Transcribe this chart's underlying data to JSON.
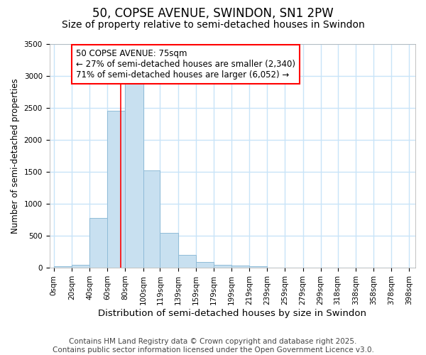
{
  "title": "50, COPSE AVENUE, SWINDON, SN1 2PW",
  "subtitle": "Size of property relative to semi-detached houses in Swindon",
  "xlabel": "Distribution of semi-detached houses by size in Swindon",
  "ylabel": "Number of semi-detached properties",
  "property_size": 75,
  "bar_left_edges": [
    0,
    20,
    40,
    60,
    80,
    100,
    119,
    139,
    159,
    179,
    199,
    219,
    239,
    259,
    279,
    299,
    318,
    338,
    358,
    378
  ],
  "bar_heights": [
    20,
    50,
    780,
    2450,
    2880,
    1520,
    540,
    200,
    90,
    50,
    30,
    20,
    5,
    3,
    3,
    2,
    2,
    1,
    1,
    1
  ],
  "bar_widths": [
    20,
    20,
    20,
    20,
    20,
    19,
    20,
    20,
    20,
    20,
    20,
    20,
    20,
    20,
    20,
    19,
    20,
    20,
    20,
    20
  ],
  "tick_labels": [
    "0sqm",
    "20sqm",
    "40sqm",
    "60sqm",
    "80sqm",
    "100sqm",
    "119sqm",
    "139sqm",
    "159sqm",
    "179sqm",
    "199sqm",
    "219sqm",
    "239sqm",
    "259sqm",
    "279sqm",
    "299sqm",
    "318sqm",
    "338sqm",
    "358sqm",
    "378sqm",
    "398sqm"
  ],
  "tick_positions": [
    0,
    20,
    40,
    60,
    80,
    100,
    119,
    139,
    159,
    179,
    199,
    219,
    239,
    259,
    279,
    299,
    318,
    338,
    358,
    378,
    398
  ],
  "ylim": [
    0,
    3500
  ],
  "xlim": [
    -5,
    405
  ],
  "bar_color": "#c8e0f0",
  "bar_edge_color": "#90bcd8",
  "vline_color": "red",
  "annotation_line1": "50 COPSE AVENUE: 75sqm",
  "annotation_line2": "← 27% of semi-detached houses are smaller (2,340)",
  "annotation_line3": "71% of semi-detached houses are larger (6,052) →",
  "footer_text": "Contains HM Land Registry data © Crown copyright and database right 2025.\nContains public sector information licensed under the Open Government Licence v3.0.",
  "bg_color": "#ffffff",
  "grid_color": "#c8e4f8",
  "title_fontsize": 12,
  "subtitle_fontsize": 10,
  "annotation_fontsize": 8.5,
  "footer_fontsize": 7.5,
  "xlabel_fontsize": 9.5,
  "ylabel_fontsize": 8.5,
  "tick_fontsize": 7.5
}
